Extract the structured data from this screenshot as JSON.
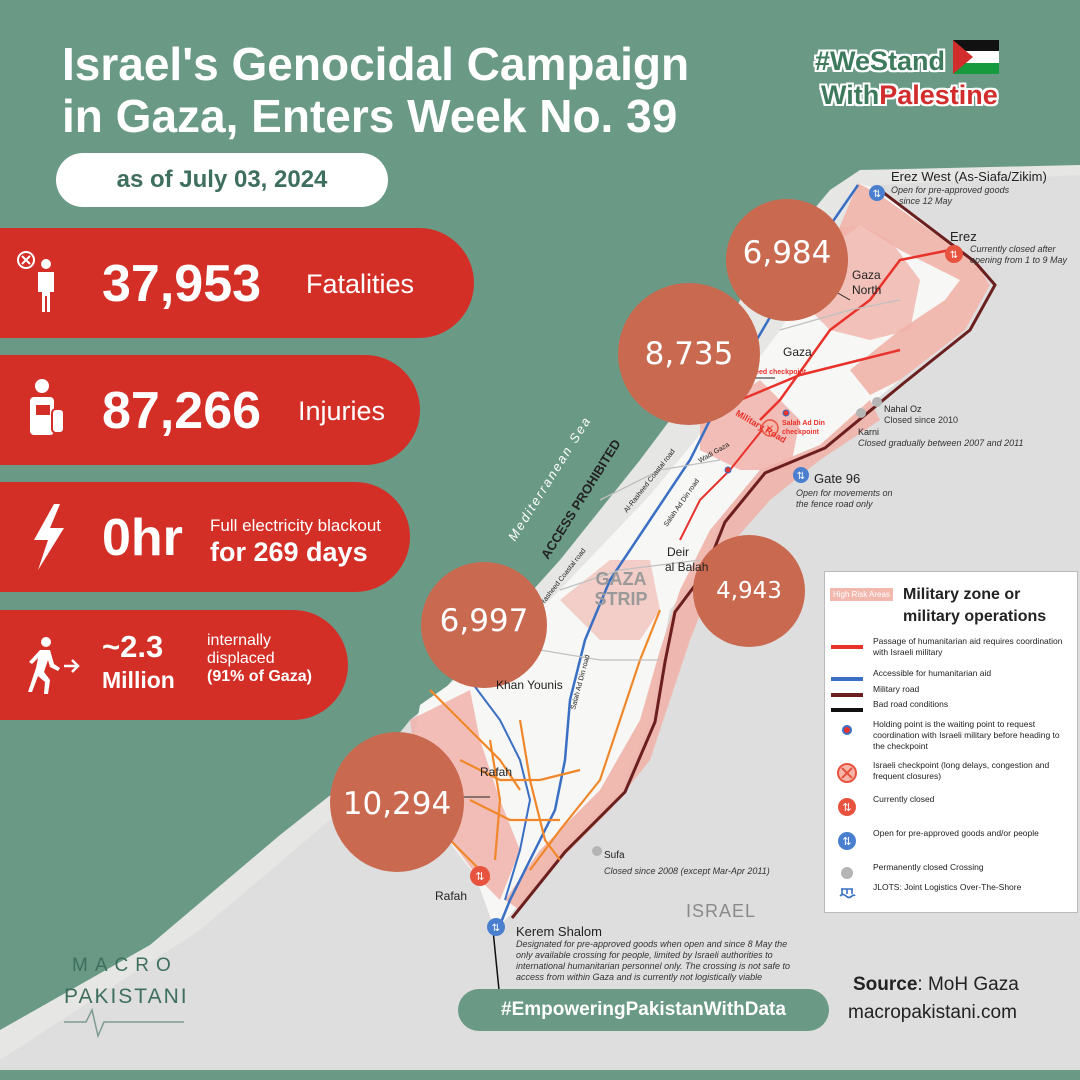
{
  "title_line1": "Israel's Genocidal Campaign",
  "title_line2": "in Gaza, Enters Week No. 39",
  "date": "as of July 03, 2024",
  "hashtag_top": {
    "line1": "#WeStand",
    "line2_a": "With",
    "line2_b": "Palestine"
  },
  "stats": {
    "fatalities": {
      "value": "37,953",
      "label": "Fatalities",
      "icon": "person-x-icon"
    },
    "injuries": {
      "value": "87,266",
      "label": "Injuries",
      "icon": "injured-person-icon"
    },
    "electricity": {
      "value": "0hr",
      "label_small": "Full electricity blackout",
      "label_big": "for 269 days",
      "icon": "lightning-icon"
    },
    "displaced": {
      "value_line1": "~2.3",
      "value_line2": "Million",
      "label_line1": "internally",
      "label_line2": "displaced",
      "label_line3": "(91% of Gaza)",
      "icon": "running-person-icon"
    }
  },
  "circles": {
    "gaza_north": "6,984",
    "gaza": "8,735",
    "deir_al_balah": "4,943",
    "khan_younis": "6,997",
    "rafah": "10,294"
  },
  "map": {
    "sea_label": "Mediterranean Sea",
    "access_label": "ACCESS PROHIBITED",
    "strip_label_1": "GAZA",
    "strip_label_2": "STRIP",
    "israel_label": "ISRAEL",
    "places": {
      "gaza_north_1": "Gaza",
      "gaza_north_2": "North",
      "gaza": "Gaza",
      "deir_1": "Deir",
      "deir_2": "al Balah",
      "khan_younis": "Khan Younis",
      "rafah": "Rafah",
      "rafah_crossing": "Rafah"
    },
    "roads": {
      "coastal": "Al Rasheed Coastal road",
      "coastal2": "Al-Rasheed Coastal road",
      "salah": "Salah Ad Din road",
      "salah2": "Salah Ad Din road",
      "wadi": "Wadi Gaza",
      "military": "Military Road",
      "checkpoint1": "Rasheed checkpoint",
      "checkpoint2_a": "Salah Ad Din",
      "checkpoint2_b": "checkpoint"
    },
    "crossings": {
      "erez_west": {
        "name": "Erez West (As-Siafa/Zikim)",
        "note_1": "Open for pre-approved goods",
        "note_2": "since 12 May"
      },
      "erez": {
        "name": "Erez",
        "note_1": "Currently closed after",
        "note_2": "opening from 1 to 9 May"
      },
      "nahal_oz": {
        "name": "Nahal Oz",
        "note": "Closed since 2010"
      },
      "karni": {
        "name": "Karni",
        "note": "Closed gradually between 2007 and 2011"
      },
      "gate96": {
        "name": "Gate 96",
        "note_1": "Open for movements on",
        "note_2": "the fence road only"
      },
      "sufa": {
        "name": "Sufa",
        "note": "Closed since  2008 (except Mar-Apr 2011)"
      },
      "kerem_shalom": {
        "name": "Kerem Shalom",
        "note_1": "Designated for pre-approved goods when open and since 8 May the",
        "note_2": "only available crossing for people, limited by Israeli authorities to",
        "note_3": "international humanitarian personnel only. The crossing is not safe to",
        "note_4": "access from within Gaza and is currently not logistically viable"
      }
    }
  },
  "legend": {
    "chip": "High Risk Areas",
    "title": "Military zone or military operations",
    "items": [
      {
        "text": "Passage of humanitarian aid requires coordination with Israeli military",
        "symbol": "red-line",
        "color": "#e8322c"
      },
      {
        "text": "Accessible for humanitarian aid",
        "symbol": "blue-line",
        "color": "#3a6fc4"
      },
      {
        "text": "Military road",
        "symbol": "darkred-line",
        "color": "#6b1f1f"
      },
      {
        "text": "Bad road conditions",
        "symbol": "black-line",
        "color": "#111111"
      },
      {
        "text": "Holding point is the waiting point to request coordination with Israeli military before heading to the checkpoint",
        "symbol": "holding-point-icon",
        "color": "#e8322c"
      },
      {
        "text": "Israeli checkpoint (long delays, congestion and frequent closures)",
        "symbol": "checkpoint-x-icon",
        "color": "#e8533f"
      },
      {
        "text": "Currently closed",
        "symbol": "closed-crossing-icon",
        "color": "#e8533f"
      },
      {
        "text": "Open for pre-approved goods and/or people",
        "symbol": "open-crossing-icon",
        "color": "#4a7fd0"
      },
      {
        "text": "Permanently closed Crossing",
        "symbol": "grey-dot-icon",
        "color": "#b5b5b5"
      },
      {
        "text": "JLOTS: Joint Logistics Over-The-Shore",
        "symbol": "jlots-icon",
        "color": "#3a6fc4"
      }
    ]
  },
  "footer": {
    "source_label": "Source",
    "source_value": ": MoH Gaza",
    "website": "macropakistani.com",
    "hashtag": "#EmpoweringPakistanWithData",
    "logo_line1": "MACRO",
    "logo_line2": "PAKISTANI"
  },
  "colors": {
    "green": "#6a9a86",
    "red": "#d32f27",
    "circle": "#c9694f",
    "land": "#e6e6e4"
  }
}
